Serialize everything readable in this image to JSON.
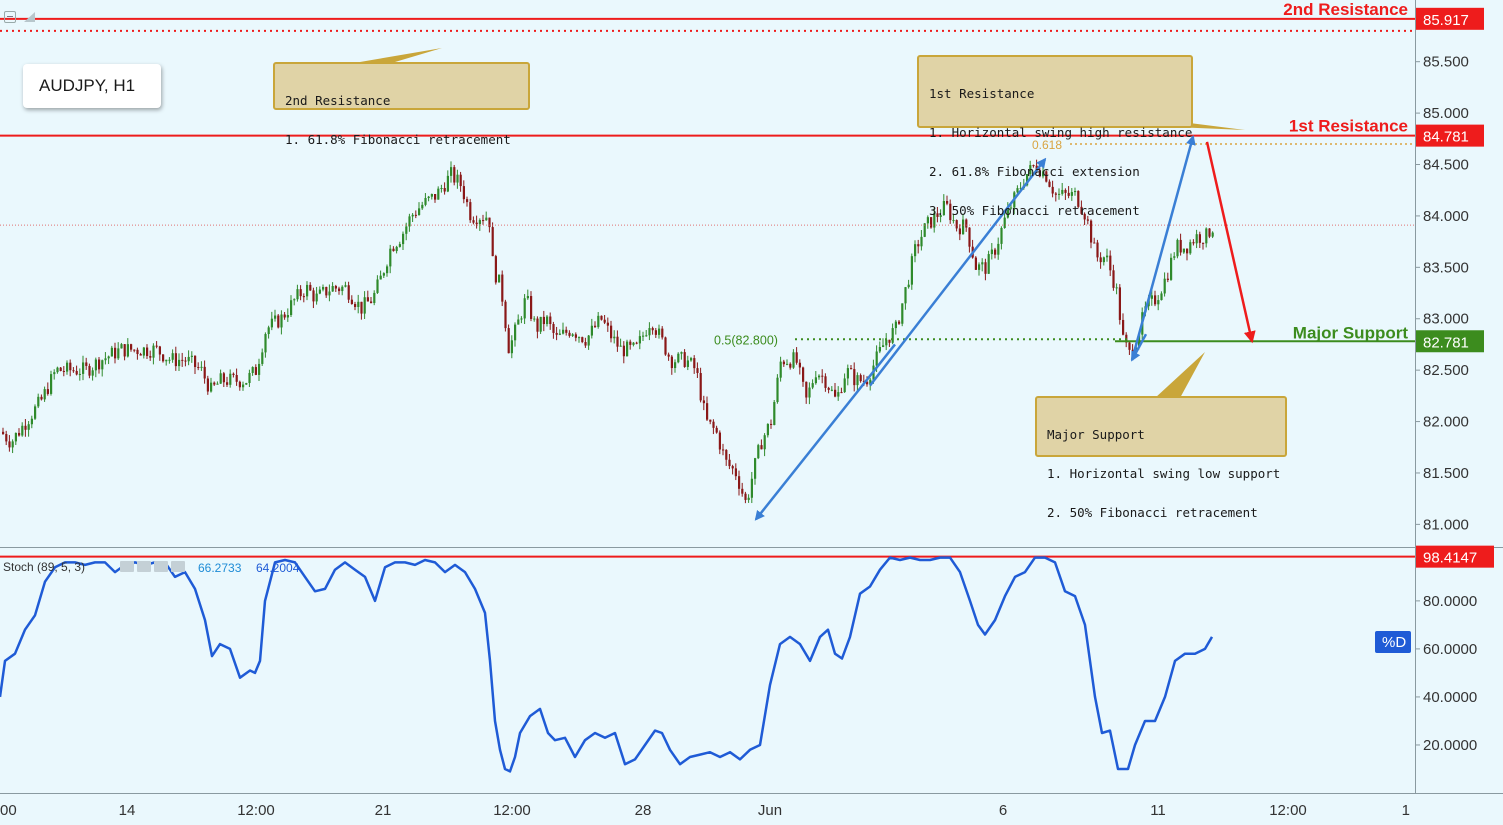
{
  "symbol": "AUDJPY, H1",
  "colors": {
    "background": "#eaf8fd",
    "resistance_red": "#ee1c1c",
    "support_green": "#3c8c1e",
    "arrow_blue": "#3a7fd5",
    "stoch_blue": "#1f5bd6",
    "candle_up": "#2f8a2c",
    "candle_down": "#8a1818"
  },
  "callouts": {
    "second_resistance": [
      "2nd Resistance",
      "1. 61.8% Fibonacci retracement"
    ],
    "first_resistance": [
      "1st Resistance",
      "1. Horizontal swing high resistance",
      "2. 61.8% Fibonacci extension",
      "3. 50% Fibonacci retracement"
    ],
    "major_support": [
      "Major Support",
      "1. Horizontal swing low support",
      "2. 50% Fibonacci retracement"
    ]
  },
  "chart_data": [
    {
      "type": "candlestick",
      "title": "AUDJPY, H1",
      "ylim": [
        80.78,
        86.1
      ],
      "y_ticks": [
        85.5,
        85.0,
        84.5,
        84.0,
        83.5,
        83.0,
        82.5,
        82.0,
        81.5,
        81.0
      ],
      "y_tick_labels": [
        "85.500",
        "85.000",
        "84.500",
        "84.000",
        "83.500",
        "83.000",
        "82.500",
        "82.000",
        "81.500",
        "81.000"
      ],
      "x_tick_labels": [
        "00",
        "14",
        "12:00",
        "21",
        "12:00",
        "28",
        "Jun",
        "6",
        "11",
        "12:00",
        "1"
      ],
      "price_path": [
        [
          0,
          81.9
        ],
        [
          10,
          81.8
        ],
        [
          25,
          82.0
        ],
        [
          40,
          82.2
        ],
        [
          55,
          82.5
        ],
        [
          70,
          82.5
        ],
        [
          85,
          82.5
        ],
        [
          100,
          82.6
        ],
        [
          120,
          82.7
        ],
        [
          140,
          82.7
        ],
        [
          155,
          82.7
        ],
        [
          170,
          82.6
        ],
        [
          185,
          82.6
        ],
        [
          200,
          82.5
        ],
        [
          210,
          82.3
        ],
        [
          220,
          82.4
        ],
        [
          230,
          82.4
        ],
        [
          245,
          82.4
        ],
        [
          255,
          82.5
        ],
        [
          265,
          82.9
        ],
        [
          280,
          83.0
        ],
        [
          295,
          83.2
        ],
        [
          305,
          83.3
        ],
        [
          315,
          83.2
        ],
        [
          330,
          83.3
        ],
        [
          345,
          83.3
        ],
        [
          360,
          83.1
        ],
        [
          372,
          83.2
        ],
        [
          380,
          83.4
        ],
        [
          390,
          83.7
        ],
        [
          400,
          83.8
        ],
        [
          410,
          84.0
        ],
        [
          420,
          84.1
        ],
        [
          435,
          84.2
        ],
        [
          450,
          84.4
        ],
        [
          460,
          84.3
        ],
        [
          470,
          84.0
        ],
        [
          480,
          84.0
        ],
        [
          488,
          84.0
        ],
        [
          492,
          83.5
        ],
        [
          500,
          83.3
        ],
        [
          508,
          82.7
        ],
        [
          515,
          82.9
        ],
        [
          525,
          83.2
        ],
        [
          535,
          82.9
        ],
        [
          545,
          83.0
        ],
        [
          555,
          82.8
        ],
        [
          570,
          82.9
        ],
        [
          585,
          82.8
        ],
        [
          600,
          83.0
        ],
        [
          612,
          82.8
        ],
        [
          620,
          82.7
        ],
        [
          635,
          82.7
        ],
        [
          650,
          83.0
        ],
        [
          660,
          82.8
        ],
        [
          670,
          82.6
        ],
        [
          685,
          82.6
        ],
        [
          695,
          82.5
        ],
        [
          705,
          82.0
        ],
        [
          715,
          81.9
        ],
        [
          725,
          81.6
        ],
        [
          735,
          81.5
        ],
        [
          745,
          81.2
        ],
        [
          752,
          81.5
        ],
        [
          760,
          81.8
        ],
        [
          770,
          82.0
        ],
        [
          780,
          82.6
        ],
        [
          795,
          82.6
        ],
        [
          805,
          82.2
        ],
        [
          815,
          82.5
        ],
        [
          825,
          82.4
        ],
        [
          835,
          82.2
        ],
        [
          845,
          82.5
        ],
        [
          855,
          82.4
        ],
        [
          865,
          82.4
        ],
        [
          875,
          82.6
        ],
        [
          885,
          82.8
        ],
        [
          895,
          82.9
        ],
        [
          905,
          83.3
        ],
        [
          915,
          83.7
        ],
        [
          925,
          83.9
        ],
        [
          935,
          84.0
        ],
        [
          945,
          84.1
        ],
        [
          955,
          83.9
        ],
        [
          965,
          83.9
        ],
        [
          975,
          83.5
        ],
        [
          985,
          83.5
        ],
        [
          995,
          83.7
        ],
        [
          1005,
          84.0
        ],
        [
          1015,
          84.2
        ],
        [
          1025,
          84.4
        ],
        [
          1035,
          84.5
        ],
        [
          1045,
          84.4
        ],
        [
          1055,
          84.2
        ],
        [
          1065,
          84.2
        ],
        [
          1075,
          84.2
        ],
        [
          1085,
          84.0
        ],
        [
          1095,
          83.6
        ],
        [
          1105,
          83.6
        ],
        [
          1115,
          83.3
        ],
        [
          1122,
          82.8
        ],
        [
          1128,
          82.65
        ],
        [
          1135,
          82.8
        ],
        [
          1145,
          83.1
        ],
        [
          1155,
          83.2
        ],
        [
          1165,
          83.4
        ],
        [
          1175,
          83.7
        ],
        [
          1185,
          83.7
        ],
        [
          1195,
          83.8
        ],
        [
          1205,
          83.8
        ],
        [
          1212,
          83.9
        ]
      ],
      "horizontal_levels": [
        {
          "label": "2nd Resistance",
          "value": 85.917,
          "value_label": "85.917",
          "color": "#ee1c1c"
        },
        {
          "label": "1st Resistance",
          "value": 84.781,
          "value_label": "84.781",
          "color": "#ee1c1c"
        },
        {
          "label": "Major Support",
          "value": 82.781,
          "value_label": "82.781",
          "color": "#3c8c1e"
        }
      ],
      "fib_dotted_level": {
        "value": 85.8,
        "color": "#ee1c1c"
      },
      "last_price_level": {
        "value": 83.91
      },
      "fib_annotations": [
        {
          "label": "0.618",
          "value": 84.7
        },
        {
          "label": "0.5(82.800)",
          "value": 82.8
        }
      ]
    },
    {
      "type": "line",
      "title": "Stoch (89, 5, 3)",
      "title_text": "Stoch (89, 5, 3)",
      "value_k": "66.2733",
      "value_d": "64.2004",
      "series_name": "%D",
      "ylim": [
        0,
        101.6
      ],
      "y_ticks": [
        80,
        60,
        40,
        20
      ],
      "y_tick_labels": [
        "80.0000",
        "60.0000",
        "40.0000",
        "20.0000"
      ],
      "overbought_level": 98.4147,
      "overbought_label": "98.4147",
      "series": [
        [
          0,
          40
        ],
        [
          5,
          55
        ],
        [
          15,
          58
        ],
        [
          25,
          68
        ],
        [
          35,
          74
        ],
        [
          45,
          88
        ],
        [
          55,
          94
        ],
        [
          65,
          96
        ],
        [
          75,
          96
        ],
        [
          85,
          95
        ],
        [
          95,
          96
        ],
        [
          105,
          96
        ],
        [
          115,
          92
        ],
        [
          125,
          95
        ],
        [
          135,
          96
        ],
        [
          145,
          95
        ],
        [
          155,
          96
        ],
        [
          165,
          96
        ],
        [
          175,
          90
        ],
        [
          185,
          92
        ],
        [
          195,
          85
        ],
        [
          205,
          72
        ],
        [
          212,
          57
        ],
        [
          220,
          62
        ],
        [
          230,
          60
        ],
        [
          240,
          48
        ],
        [
          250,
          51
        ],
        [
          255,
          50
        ],
        [
          260,
          55
        ],
        [
          265,
          80
        ],
        [
          275,
          96
        ],
        [
          285,
          97
        ],
        [
          295,
          96
        ],
        [
          305,
          90
        ],
        [
          315,
          84
        ],
        [
          325,
          85
        ],
        [
          335,
          93
        ],
        [
          345,
          96
        ],
        [
          355,
          93
        ],
        [
          365,
          90
        ],
        [
          375,
          80
        ],
        [
          385,
          94
        ],
        [
          395,
          96
        ],
        [
          405,
          96
        ],
        [
          415,
          95
        ],
        [
          425,
          97
        ],
        [
          435,
          96
        ],
        [
          445,
          92
        ],
        [
          455,
          95
        ],
        [
          465,
          92
        ],
        [
          475,
          85
        ],
        [
          485,
          75
        ],
        [
          490,
          55
        ],
        [
          495,
          30
        ],
        [
          500,
          18
        ],
        [
          505,
          10
        ],
        [
          510,
          9
        ],
        [
          515,
          15
        ],
        [
          520,
          25
        ],
        [
          530,
          32
        ],
        [
          540,
          35
        ],
        [
          548,
          25
        ],
        [
          555,
          22
        ],
        [
          565,
          23
        ],
        [
          575,
          15
        ],
        [
          585,
          22
        ],
        [
          595,
          25
        ],
        [
          605,
          23
        ],
        [
          615,
          25
        ],
        [
          625,
          12
        ],
        [
          635,
          14
        ],
        [
          645,
          20
        ],
        [
          655,
          26
        ],
        [
          662,
          25
        ],
        [
          670,
          18
        ],
        [
          680,
          12
        ],
        [
          690,
          15
        ],
        [
          700,
          16
        ],
        [
          710,
          17
        ],
        [
          720,
          15
        ],
        [
          730,
          17
        ],
        [
          740,
          14
        ],
        [
          750,
          18
        ],
        [
          760,
          20
        ],
        [
          770,
          45
        ],
        [
          780,
          62
        ],
        [
          790,
          65
        ],
        [
          800,
          62
        ],
        [
          810,
          55
        ],
        [
          820,
          65
        ],
        [
          828,
          68
        ],
        [
          835,
          58
        ],
        [
          842,
          56
        ],
        [
          850,
          65
        ],
        [
          860,
          83
        ],
        [
          870,
          86
        ],
        [
          880,
          93
        ],
        [
          890,
          98
        ],
        [
          900,
          97
        ],
        [
          910,
          98
        ],
        [
          920,
          97
        ],
        [
          930,
          97
        ],
        [
          940,
          98
        ],
        [
          950,
          98
        ],
        [
          960,
          92
        ],
        [
          970,
          80
        ],
        [
          978,
          70
        ],
        [
          985,
          66
        ],
        [
          995,
          72
        ],
        [
          1005,
          82
        ],
        [
          1015,
          90
        ],
        [
          1025,
          92
        ],
        [
          1035,
          98
        ],
        [
          1045,
          98
        ],
        [
          1055,
          96
        ],
        [
          1065,
          84
        ],
        [
          1075,
          82
        ],
        [
          1085,
          70
        ],
        [
          1095,
          40
        ],
        [
          1102,
          25
        ],
        [
          1110,
          26
        ],
        [
          1118,
          10
        ],
        [
          1128,
          10
        ],
        [
          1135,
          20
        ],
        [
          1145,
          30
        ],
        [
          1155,
          30
        ],
        [
          1165,
          40
        ],
        [
          1175,
          55
        ],
        [
          1185,
          58
        ],
        [
          1195,
          58
        ],
        [
          1205,
          60
        ],
        [
          1212,
          65
        ]
      ]
    }
  ]
}
